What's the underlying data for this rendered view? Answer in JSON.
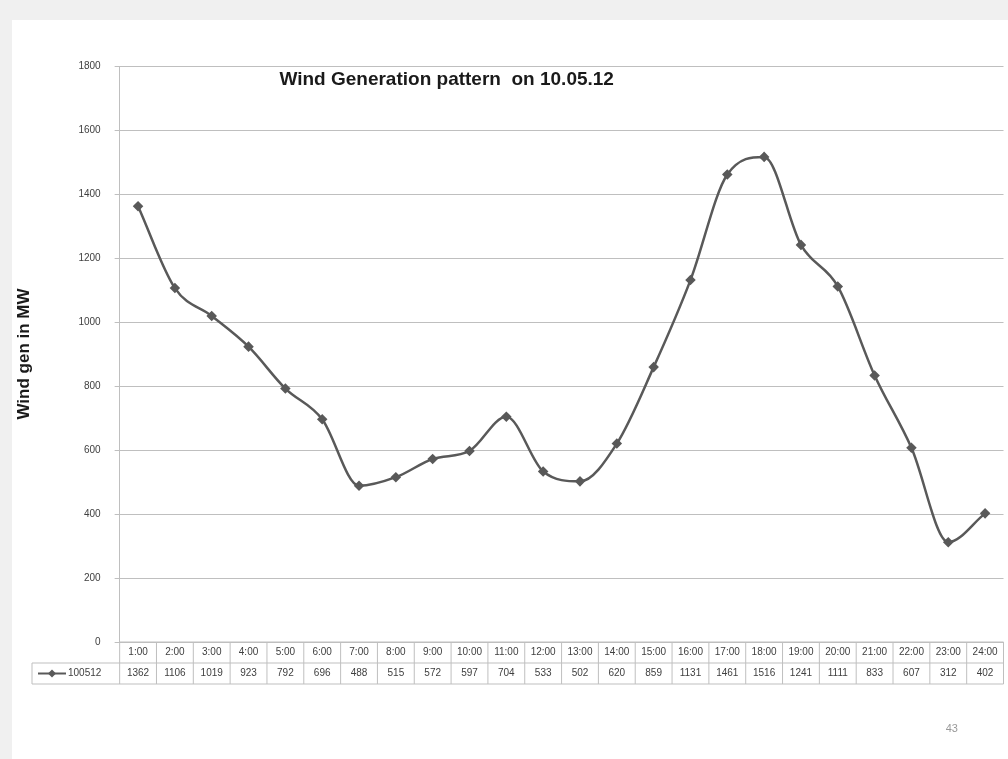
{
  "chart_data": {
    "type": "line",
    "title": "Wind Generation pattern  on 10.05.12",
    "ylabel": "Wind gen in MW",
    "categories": [
      "1:00",
      "2:00",
      "3:00",
      "4:00",
      "5:00",
      "6:00",
      "7:00",
      "8:00",
      "9:00",
      "10:00",
      "11:00",
      "12:00",
      "13:00",
      "14:00",
      "15:00",
      "16:00",
      "17:00",
      "18:00",
      "19:00",
      "20:00",
      "21:00",
      "22:00",
      "23:00",
      "24:00"
    ],
    "series": [
      {
        "name": "100512",
        "color": "#595959",
        "values": [
          1362,
          1106,
          1019,
          923,
          792,
          696,
          488,
          515,
          572,
          597,
          704,
          533,
          502,
          620,
          859,
          1131,
          1461,
          1516,
          1241,
          1111,
          833,
          607,
          312,
          402
        ]
      }
    ],
    "ylim": [
      0,
      1800
    ],
    "yticks": [
      0,
      200,
      400,
      600,
      800,
      1000,
      1200,
      1400,
      1600,
      1800
    ],
    "grid": "y",
    "marker": "diamond",
    "line_style": "solid",
    "legend": "bottom",
    "data_labels": true,
    "annotations": [
      "43"
    ]
  }
}
